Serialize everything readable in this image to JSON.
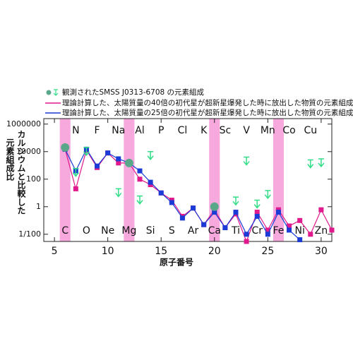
{
  "chart_data": {
    "type": "line",
    "x_label": "原子番号",
    "y_label": [
      "カルシウムと比較した",
      "元素組成比"
    ],
    "xlim": [
      4,
      31
    ],
    "xticks": [
      5,
      10,
      15,
      20,
      25,
      30
    ],
    "ylim": [
      0.003,
      2500000
    ],
    "yticks": [
      1000000,
      10000,
      100,
      1,
      {
        "value": 0.01,
        "label": "1/100"
      }
    ],
    "log_y": true,
    "highlights": [
      6,
      12,
      20,
      26
    ],
    "highlight_color": "#f7a8dc",
    "top_labels": {
      "x": [
        7,
        9,
        11,
        13,
        15,
        17,
        19,
        21,
        23,
        25,
        27,
        29
      ],
      "labels": [
        "N",
        "F",
        "Na",
        "Al",
        "P",
        "Cl",
        "K",
        "Sc",
        "V",
        "Mn",
        "Co",
        "Cu"
      ]
    },
    "bottom_labels": {
      "x": [
        6,
        8,
        10,
        12,
        14,
        16,
        18,
        20,
        22,
        24,
        26,
        28,
        30
      ],
      "labels": [
        "C",
        "O",
        "Ne",
        "Mg",
        "Si",
        "S",
        "Ar",
        "Ca",
        "Ti",
        "Cr",
        "Fe",
        "Ni",
        "Zn"
      ]
    },
    "observed": {
      "name": "観測されたSMSS J0313-6708 の元素組成",
      "color": "#5aa88a",
      "limit_color": "#33dd88",
      "x": [
        6,
        12,
        20
      ],
      "values": [
        20000,
        1500,
        1
      ],
      "limits_x": [
        7,
        8,
        11,
        13,
        14,
        22,
        23,
        24,
        25,
        29,
        30
      ],
      "limits": [
        600,
        20000,
        20,
        6,
        10000,
        5,
        4000,
        3,
        15,
        2500,
        3000
      ]
    },
    "series": [
      {
        "name": "理論計算した、太陽質量の40倍の初代星が超新星爆発した時に放出した物質の元素組成",
        "color": "#e0198c",
        "x": [
          6,
          7,
          8,
          9,
          10,
          11,
          12,
          13,
          14,
          15,
          16,
          17,
          18,
          19,
          20,
          21,
          22,
          23,
          24,
          25,
          26,
          27,
          28,
          29,
          30,
          31
        ],
        "values": [
          15000,
          20,
          13000,
          700,
          8000,
          1500,
          1500,
          100,
          40,
          10,
          3,
          0.2,
          0.8,
          0.05,
          0.6,
          0.03,
          0.3,
          0.003,
          0.4,
          0.02,
          0.6,
          0.04,
          0.1,
          0.01,
          0.6,
          0.02
        ]
      },
      {
        "name": "理論計算した、太陽質量の25倍の初代星が超新星爆発した時に放出した物質の元素組成",
        "color": "#1a3bd6",
        "x": [
          6,
          7,
          8,
          9,
          10,
          11,
          12,
          13,
          14,
          15,
          16,
          17,
          18,
          19,
          20,
          21,
          22,
          23,
          24,
          25,
          26,
          27,
          28
        ],
        "values": [
          15000,
          400,
          15000,
          900,
          8000,
          3000,
          1500,
          400,
          60,
          10,
          2,
          0.15,
          0.8,
          0.05,
          0.4,
          0.03,
          0.4,
          0.01,
          0.2,
          0.01,
          0.4,
          0.02,
          0.004
        ]
      }
    ]
  }
}
